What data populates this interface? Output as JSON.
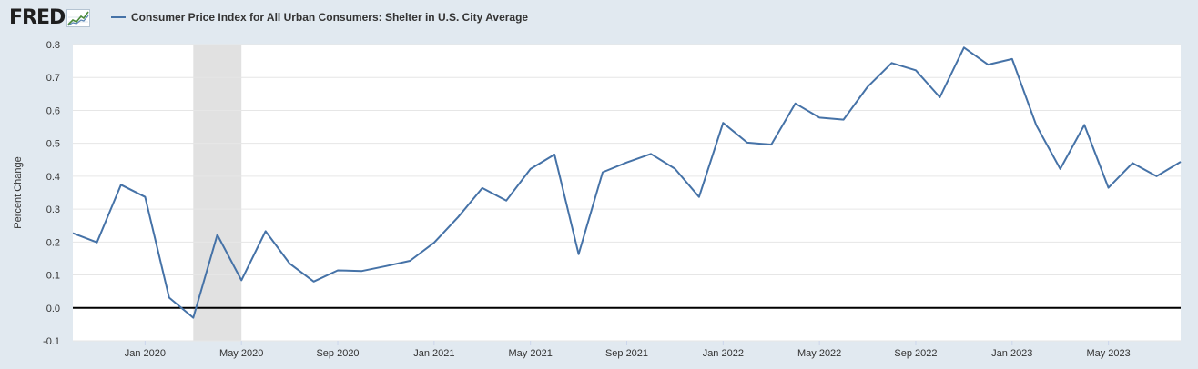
{
  "header": {
    "logo_text": "FRED",
    "series_title": "Consumer Price Index for All Urban Consumers: Shelter in U.S. City Average"
  },
  "colors": {
    "background": "#e1e9f0",
    "plot": "#ffffff",
    "series": "#4572a7",
    "recession": "#e1e1e1",
    "zero_line": "#000000",
    "grid": "#e6e6e6"
  },
  "chart_data": {
    "type": "line",
    "title": "",
    "xlabel": "",
    "ylabel": "Percent Change",
    "ylim": [
      -0.1,
      0.8
    ],
    "y_ticks": [
      "-0.1",
      "0.0",
      "0.1",
      "0.2",
      "0.3",
      "0.4",
      "0.5",
      "0.6",
      "0.7",
      "0.8"
    ],
    "x_ticks": [
      {
        "date": "2020-01",
        "label": "Jan 2020"
      },
      {
        "date": "2020-05",
        "label": "May 2020"
      },
      {
        "date": "2020-09",
        "label": "Sep 2020"
      },
      {
        "date": "2021-01",
        "label": "Jan 2021"
      },
      {
        "date": "2021-05",
        "label": "May 2021"
      },
      {
        "date": "2021-09",
        "label": "Sep 2021"
      },
      {
        "date": "2022-01",
        "label": "Jan 2022"
      },
      {
        "date": "2022-05",
        "label": "May 2022"
      },
      {
        "date": "2022-09",
        "label": "Sep 2022"
      },
      {
        "date": "2023-01",
        "label": "Jan 2023"
      },
      {
        "date": "2023-05",
        "label": "May 2023"
      }
    ],
    "xlim": [
      "2019-10",
      "2023-08"
    ],
    "grid": true,
    "legend_position": "top-left",
    "recession_shading": [
      {
        "start": "2020-03",
        "end": "2020-05"
      }
    ],
    "series": [
      {
        "name": "Consumer Price Index for All Urban Consumers: Shelter in U.S. City Average",
        "x": [
          "2019-10",
          "2019-11",
          "2019-12",
          "2020-01",
          "2020-02",
          "2020-03",
          "2020-04",
          "2020-05",
          "2020-06",
          "2020-07",
          "2020-08",
          "2020-09",
          "2020-10",
          "2020-11",
          "2020-12",
          "2021-01",
          "2021-02",
          "2021-03",
          "2021-04",
          "2021-05",
          "2021-06",
          "2021-07",
          "2021-08",
          "2021-09",
          "2021-10",
          "2021-11",
          "2021-12",
          "2022-01",
          "2022-02",
          "2022-03",
          "2022-04",
          "2022-05",
          "2022-06",
          "2022-07",
          "2022-08",
          "2022-09",
          "2022-10",
          "2022-11",
          "2022-12",
          "2023-01",
          "2023-02",
          "2023-03",
          "2023-04",
          "2023-05",
          "2023-06",
          "2023-07",
          "2023-08"
        ],
        "values": [
          0.227,
          0.199,
          0.374,
          0.337,
          0.031,
          -0.03,
          0.222,
          0.084,
          0.233,
          0.135,
          0.08,
          0.114,
          0.112,
          0.127,
          0.143,
          0.198,
          0.276,
          0.364,
          0.326,
          0.422,
          0.466,
          0.163,
          0.412,
          0.442,
          0.468,
          0.423,
          0.337,
          0.562,
          0.502,
          0.496,
          0.621,
          0.578,
          0.572,
          0.672,
          0.744,
          0.722,
          0.64,
          0.791,
          0.739,
          0.756,
          0.555,
          0.422,
          0.556,
          0.365,
          0.44,
          0.4,
          0.444
        ]
      }
    ]
  }
}
